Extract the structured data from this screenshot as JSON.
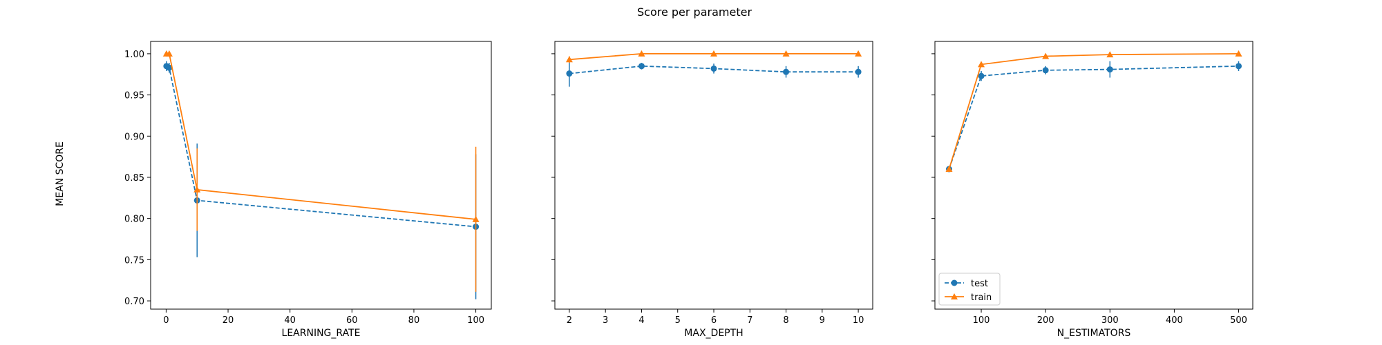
{
  "title": "Score per parameter",
  "ylabel": "MEAN SCORE",
  "colors": {
    "test": "#1f77b4",
    "train": "#ff7f0e"
  },
  "legend": {
    "placement": "lower-left",
    "entries": [
      "test",
      "train"
    ]
  },
  "chart_data": [
    {
      "type": "line",
      "xlabel": "LEARNING_RATE",
      "xlim": [
        -5,
        105
      ],
      "ylim": [
        0.69,
        1.015
      ],
      "xticks": [
        0,
        20,
        40,
        60,
        80,
        100
      ],
      "yticks": [
        0.7,
        0.75,
        0.8,
        0.85,
        0.9,
        0.95,
        1.0
      ],
      "show_ytick_labels": true,
      "x": [
        0.1,
        1,
        10,
        100
      ],
      "series": [
        {
          "name": "test",
          "values": [
            0.985,
            0.983,
            0.822,
            0.79
          ],
          "err": [
            0.006,
            0.006,
            0.069,
            0.088
          ]
        },
        {
          "name": "train",
          "values": [
            1.0,
            1.0,
            0.835,
            0.799
          ],
          "err": [
            0.0,
            0.0,
            0.05,
            0.088
          ]
        }
      ]
    },
    {
      "type": "line",
      "xlabel": "MAX_DEPTH",
      "xlim": [
        1.6,
        10.4
      ],
      "ylim": [
        0.69,
        1.015
      ],
      "xticks": [
        2,
        3,
        4,
        5,
        6,
        7,
        8,
        9,
        10
      ],
      "yticks": [
        0.7,
        0.75,
        0.8,
        0.85,
        0.9,
        0.95,
        1.0
      ],
      "show_ytick_labels": false,
      "x": [
        2,
        4,
        6,
        8,
        10
      ],
      "series": [
        {
          "name": "test",
          "values": [
            0.976,
            0.985,
            0.982,
            0.978,
            0.978
          ],
          "err": [
            0.016,
            0.004,
            0.006,
            0.007,
            0.007
          ]
        },
        {
          "name": "train",
          "values": [
            0.993,
            1.0,
            1.0,
            1.0,
            1.0
          ],
          "err": [
            0.004,
            0.0,
            0.0,
            0.0,
            0.0
          ]
        }
      ]
    },
    {
      "type": "line",
      "xlabel": "N_ESTIMATORS",
      "xlim": [
        28,
        522
      ],
      "ylim": [
        0.69,
        1.015
      ],
      "xticks": [
        100,
        200,
        300,
        400,
        500
      ],
      "yticks": [
        0.7,
        0.75,
        0.8,
        0.85,
        0.9,
        0.95,
        1.0
      ],
      "show_ytick_labels": false,
      "x": [
        50,
        100,
        200,
        300,
        500
      ],
      "series": [
        {
          "name": "test",
          "values": [
            0.86,
            0.973,
            0.98,
            0.981,
            0.985
          ],
          "err": [
            0.003,
            0.006,
            0.005,
            0.01,
            0.006
          ]
        },
        {
          "name": "train",
          "values": [
            0.86,
            0.987,
            0.997,
            0.999,
            1.0
          ],
          "err": [
            0.0,
            0.002,
            0.001,
            0.001,
            0.0
          ]
        }
      ]
    }
  ]
}
